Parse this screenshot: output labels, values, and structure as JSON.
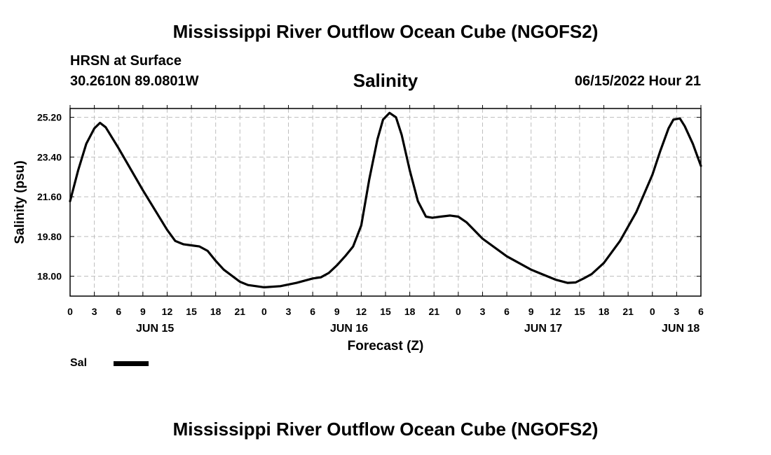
{
  "header": {
    "title": "Mississippi River Outflow Ocean Cube (NGOFS2)",
    "station": "HRSN at Surface",
    "coords": "30.2610N  89.0801W",
    "datetime": "06/15/2022 Hour 21"
  },
  "footer": {
    "title": "Mississippi River Outflow Ocean Cube (NGOFS2)"
  },
  "chart_data": {
    "type": "line",
    "title": "Salinity",
    "xlabel": "Forecast (Z)",
    "ylabel": "Salinity (psu)",
    "grid": true,
    "legend_position": "bottom-left",
    "xlim": [
      0,
      78
    ],
    "ylim": [
      17.1,
      25.6
    ],
    "x_ticks": [
      0,
      3,
      6,
      9,
      12,
      15,
      18,
      21,
      24,
      27,
      30,
      33,
      36,
      39,
      42,
      45,
      48,
      51,
      54,
      57,
      60,
      63,
      66,
      69,
      72,
      75,
      78
    ],
    "x_tick_labels": [
      "0",
      "3",
      "6",
      "9",
      "12",
      "15",
      "18",
      "21",
      "0",
      "3",
      "6",
      "9",
      "12",
      "15",
      "18",
      "21",
      "0",
      "3",
      "6",
      "9",
      "12",
      "15",
      "18",
      "21",
      "0",
      "3",
      "6"
    ],
    "day_labels": [
      {
        "x": 10.5,
        "label": "JUN 15"
      },
      {
        "x": 34.5,
        "label": "JUN 16"
      },
      {
        "x": 58.5,
        "label": "JUN 17"
      },
      {
        "x": 75.5,
        "label": "JUN 18"
      }
    ],
    "y_ticks": [
      18.0,
      19.8,
      21.6,
      23.4,
      25.2
    ],
    "y_tick_labels": [
      "18.00",
      "19.80",
      "21.60",
      "23.40",
      "25.20"
    ],
    "series": [
      {
        "name": "Sal",
        "color": "#000000",
        "x": [
          0,
          1,
          2,
          3,
          3.7,
          4.4,
          6,
          9,
          12,
          13,
          14,
          15,
          16,
          17,
          18,
          19,
          21,
          22,
          23,
          24,
          26,
          28,
          30,
          31,
          32,
          33,
          34,
          35,
          36,
          37,
          38,
          38.7,
          39.5,
          40.3,
          41,
          42,
          43,
          44,
          44.8,
          45.8,
          47,
          48,
          49,
          51,
          54,
          57,
          60,
          61.5,
          62.5,
          63.5,
          64.5,
          66,
          68,
          70,
          72,
          73,
          74,
          74.6,
          75.4,
          76,
          77,
          78
        ],
        "y": [
          21.4,
          22.8,
          24.0,
          24.7,
          24.95,
          24.75,
          23.8,
          21.9,
          20.1,
          19.6,
          19.45,
          19.4,
          19.35,
          19.15,
          18.7,
          18.3,
          17.75,
          17.6,
          17.55,
          17.5,
          17.55,
          17.7,
          17.9,
          17.95,
          18.15,
          18.5,
          18.9,
          19.35,
          20.3,
          22.4,
          24.2,
          25.1,
          25.4,
          25.2,
          24.4,
          22.8,
          21.4,
          20.7,
          20.65,
          20.7,
          20.75,
          20.7,
          20.45,
          19.7,
          18.9,
          18.3,
          17.85,
          17.7,
          17.72,
          17.9,
          18.1,
          18.6,
          19.6,
          20.9,
          22.6,
          23.7,
          24.7,
          25.1,
          25.15,
          24.8,
          24.0,
          23.0
        ]
      }
    ]
  }
}
